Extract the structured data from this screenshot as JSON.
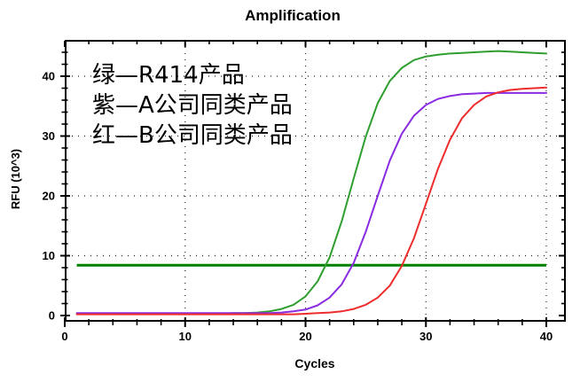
{
  "chart_data": {
    "type": "line",
    "title": "Amplification",
    "xlabel": "Cycles",
    "ylabel": "RFU (10^3)",
    "x_range": [
      0,
      41.6
    ],
    "y_range": [
      -1,
      46
    ],
    "x_major_ticks": [
      0,
      10,
      20,
      30,
      40
    ],
    "y_major_ticks": [
      0,
      10,
      20,
      30,
      40
    ],
    "minor_tick_step": 2,
    "grid": {
      "style": "dotted",
      "at_x": [
        10,
        20,
        30,
        40
      ],
      "at_y": [
        10,
        20,
        30,
        40
      ]
    },
    "threshold_line": {
      "value": 8.4,
      "x_start": 1,
      "x_end": 40,
      "color": "#008000",
      "width": 3
    },
    "x": [
      1,
      2,
      3,
      4,
      5,
      6,
      7,
      8,
      9,
      10,
      11,
      12,
      13,
      14,
      15,
      16,
      17,
      18,
      19,
      20,
      21,
      22,
      23,
      24,
      25,
      26,
      27,
      28,
      29,
      30,
      31,
      32,
      33,
      34,
      35,
      36,
      37,
      38,
      39,
      40
    ],
    "series": [
      {
        "name": "绿—R414产品",
        "color": "#2e9e2e",
        "values": [
          0.3,
          0.3,
          0.3,
          0.3,
          0.3,
          0.3,
          0.3,
          0.3,
          0.3,
          0.3,
          0.3,
          0.3,
          0.3,
          0.4,
          0.4,
          0.5,
          0.7,
          1.1,
          1.8,
          3.2,
          5.7,
          9.7,
          15.7,
          22.9,
          29.9,
          35.5,
          39.2,
          41.4,
          42.7,
          43.3,
          43.6,
          43.8,
          43.9,
          44.0,
          44.1,
          44.2,
          44.1,
          44.0,
          43.9,
          43.8
        ]
      },
      {
        "name": "紫—A公司同类产品",
        "color": "#8a2be2",
        "values": [
          0.4,
          0.4,
          0.4,
          0.4,
          0.4,
          0.4,
          0.4,
          0.4,
          0.4,
          0.4,
          0.4,
          0.4,
          0.4,
          0.4,
          0.4,
          0.4,
          0.4,
          0.5,
          0.7,
          1.0,
          1.7,
          3.0,
          5.2,
          8.8,
          14.0,
          20.0,
          25.9,
          30.4,
          33.4,
          35.2,
          36.2,
          36.7,
          37.0,
          37.1,
          37.2,
          37.2,
          37.2,
          37.2,
          37.2,
          37.2
        ]
      },
      {
        "name": "红—B公司同类产品",
        "color": "#ee2c2c",
        "values": [
          0.2,
          0.2,
          0.2,
          0.2,
          0.2,
          0.2,
          0.2,
          0.2,
          0.2,
          0.2,
          0.2,
          0.2,
          0.2,
          0.2,
          0.2,
          0.2,
          0.2,
          0.2,
          0.2,
          0.3,
          0.4,
          0.5,
          0.7,
          1.1,
          1.8,
          3.0,
          5.0,
          8.3,
          12.9,
          18.7,
          24.5,
          29.4,
          33.0,
          35.2,
          36.6,
          37.3,
          37.7,
          37.9,
          38.0,
          38.1
        ]
      }
    ],
    "annotation": {
      "color": "#000000"
    }
  },
  "colors": {
    "background": "#ffffff",
    "axis": "#000000",
    "tick_text": "#000000"
  }
}
